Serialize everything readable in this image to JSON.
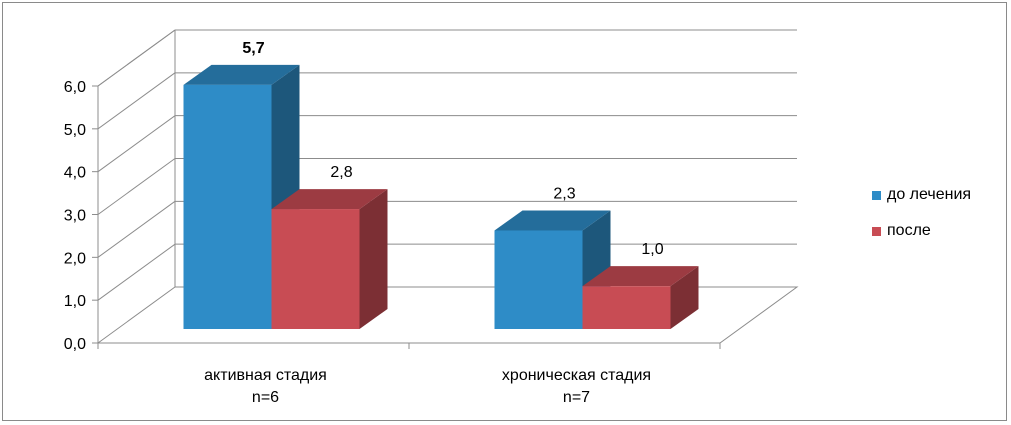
{
  "chart_data": {
    "type": "bar",
    "categories": [
      [
        "активная стадия",
        "n=6"
      ],
      [
        "хроническая стадия",
        "n=7"
      ]
    ],
    "series": [
      {
        "name": "до лечения",
        "values": [
          5.7,
          2.3
        ],
        "labels": [
          "5,7",
          "2,3"
        ],
        "color": "#2e8cc7"
      },
      {
        "name": "после",
        "values": [
          2.8,
          1.0
        ],
        "labels": [
          "2,8",
          "1,0"
        ],
        "color": "#c84c54"
      }
    ],
    "yticks": [
      "0,0",
      "1,0",
      "2,0",
      "3,0",
      "4,0",
      "5,0",
      "6,0"
    ],
    "ylim": [
      0,
      6
    ],
    "grid": true,
    "legend": "right",
    "style": "3d-column"
  }
}
